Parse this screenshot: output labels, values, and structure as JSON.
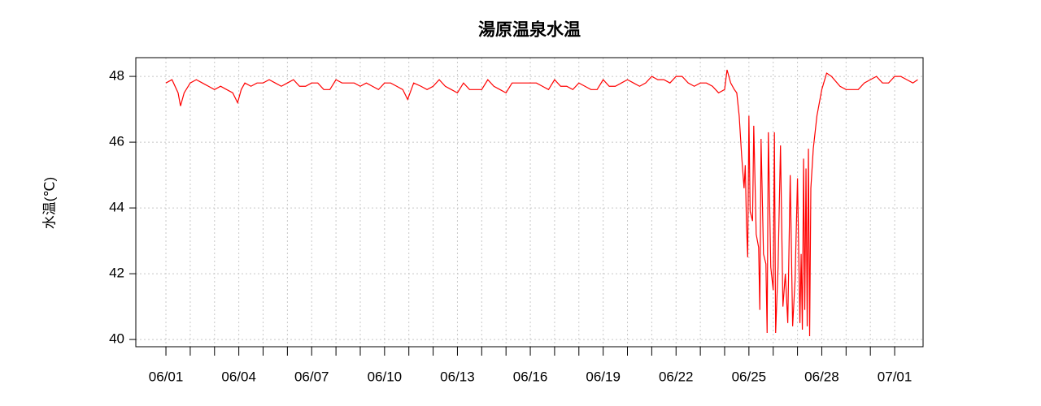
{
  "chart_data": {
    "type": "line",
    "title": "湯原温泉水温",
    "y_label": "水温(℃)",
    "x": [
      0,
      0.25,
      0.5,
      0.6,
      0.75,
      1,
      1.25,
      1.5,
      1.75,
      2,
      2.25,
      2.5,
      2.75,
      2.95,
      3.1,
      3.25,
      3.5,
      3.75,
      4,
      4.25,
      4.5,
      4.75,
      5,
      5.25,
      5.5,
      5.75,
      6,
      6.25,
      6.5,
      6.75,
      7,
      7.25,
      7.5,
      7.75,
      8,
      8.25,
      8.5,
      8.75,
      9,
      9.25,
      9.5,
      9.75,
      9.95,
      10.2,
      10.5,
      10.75,
      11,
      11.25,
      11.5,
      11.75,
      12,
      12.25,
      12.5,
      12.75,
      13,
      13.25,
      13.5,
      13.75,
      14,
      14.25,
      14.5,
      14.75,
      15,
      15.25,
      15.5,
      15.75,
      16,
      16.25,
      16.5,
      16.75,
      17,
      17.25,
      17.5,
      17.75,
      18,
      18.25,
      18.5,
      18.75,
      19,
      19.25,
      19.5,
      19.75,
      20,
      20.25,
      20.5,
      20.75,
      21,
      21.25,
      21.5,
      21.75,
      22,
      22.25,
      22.5,
      22.75,
      23,
      23.1,
      23.25,
      23.4,
      23.5,
      23.6,
      23.7,
      23.8,
      23.85,
      23.9,
      23.95,
      24,
      24.05,
      24.15,
      24.2,
      24.3,
      24.4,
      24.45,
      24.5,
      24.6,
      24.7,
      24.75,
      24.8,
      24.9,
      25,
      25.05,
      25.1,
      25.2,
      25.3,
      25.4,
      25.5,
      25.6,
      25.7,
      25.8,
      25.9,
      26,
      26.1,
      26.15,
      26.2,
      26.25,
      26.3,
      26.35,
      26.4,
      26.45,
      26.5,
      26.55,
      26.65,
      26.8,
      27,
      27.2,
      27.4,
      27.75,
      28,
      28.25,
      28.5,
      28.75,
      29,
      29.25,
      29.5,
      29.75,
      30,
      30.25,
      30.5,
      30.75,
      30.95
    ],
    "series": [
      {
        "color": "#ff0000",
        "values": [
          47.8,
          47.9,
          47.5,
          47.1,
          47.5,
          47.8,
          47.9,
          47.8,
          47.7,
          47.6,
          47.7,
          47.6,
          47.5,
          47.2,
          47.6,
          47.8,
          47.7,
          47.8,
          47.8,
          47.9,
          47.8,
          47.7,
          47.8,
          47.9,
          47.7,
          47.7,
          47.8,
          47.8,
          47.6,
          47.6,
          47.9,
          47.8,
          47.8,
          47.8,
          47.7,
          47.8,
          47.7,
          47.6,
          47.8,
          47.8,
          47.7,
          47.6,
          47.3,
          47.8,
          47.7,
          47.6,
          47.7,
          47.9,
          47.7,
          47.6,
          47.5,
          47.8,
          47.6,
          47.6,
          47.6,
          47.9,
          47.7,
          47.6,
          47.5,
          47.8,
          47.8,
          47.8,
          47.8,
          47.8,
          47.7,
          47.6,
          47.9,
          47.7,
          47.7,
          47.6,
          47.8,
          47.7,
          47.6,
          47.6,
          47.9,
          47.7,
          47.7,
          47.8,
          47.9,
          47.8,
          47.7,
          47.8,
          48.0,
          47.9,
          47.9,
          47.8,
          48.0,
          48.0,
          47.8,
          47.7,
          47.8,
          47.8,
          47.7,
          47.5,
          47.6,
          48.2,
          47.8,
          47.6,
          47.5,
          46.8,
          45.6,
          44.6,
          45.3,
          43.5,
          42.5,
          46.8,
          43.9,
          43.6,
          46.5,
          43.2,
          42.8,
          40.9,
          46.1,
          42.6,
          42.3,
          40.2,
          46.3,
          42.2,
          41.5,
          46.3,
          40.2,
          42.2,
          45.9,
          41.0,
          42.0,
          40.5,
          45.0,
          40.4,
          41.8,
          44.9,
          40.5,
          42.6,
          40.3,
          45.5,
          40.9,
          45.2,
          40.4,
          45.8,
          40.1,
          44.6,
          45.8,
          46.8,
          47.6,
          48.1,
          48.0,
          47.7,
          47.6,
          47.6,
          47.6,
          47.8,
          47.9,
          48.0,
          47.8,
          47.8,
          48.0,
          48.0,
          47.9,
          47.8,
          47.9
        ]
      }
    ],
    "xlim": [
      -1.24,
      31.17
    ],
    "xticks": [
      {
        "value": 0,
        "label": "06/01"
      },
      {
        "value": 3,
        "label": "06/04"
      },
      {
        "value": 6,
        "label": "06/07"
      },
      {
        "value": 9,
        "label": "06/10"
      },
      {
        "value": 12,
        "label": "06/13"
      },
      {
        "value": 15,
        "label": "06/16"
      },
      {
        "value": 18,
        "label": "06/19"
      },
      {
        "value": 21,
        "label": "06/22"
      },
      {
        "value": 24,
        "label": "06/25"
      },
      {
        "value": 27,
        "label": "06/28"
      },
      {
        "value": 30,
        "label": "07/01"
      }
    ],
    "xminorticks": [
      1,
      2,
      4,
      5,
      7,
      8,
      10,
      11,
      13,
      14,
      16,
      17,
      19,
      20,
      22,
      23,
      25,
      26,
      28,
      29
    ],
    "ylim": [
      39.78,
      48.57
    ],
    "yticks": [
      40,
      42,
      44,
      46,
      48
    ],
    "grid": true
  }
}
